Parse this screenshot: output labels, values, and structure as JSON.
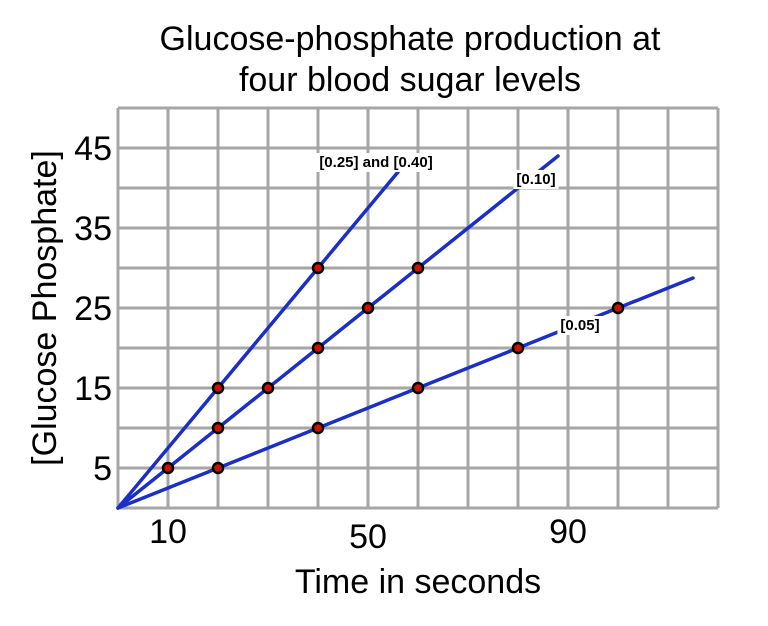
{
  "chart_data": {
    "type": "line",
    "title_lines": [
      "Glucose-phosphate production at",
      "four blood sugar levels"
    ],
    "xlabel": "Time in seconds",
    "ylabel": "[Glucose Phosphate]",
    "xlim": [
      0,
      120
    ],
    "ylim": [
      0,
      50
    ],
    "x_grid_step": 10,
    "y_grid_step": 5,
    "x_ticks": [
      {
        "value": 10,
        "label": "10"
      },
      {
        "value": 50,
        "label": "50"
      },
      {
        "value": 90,
        "label": "90"
      }
    ],
    "y_ticks": [
      {
        "value": 5,
        "label": "5"
      },
      {
        "value": 15,
        "label": "15"
      },
      {
        "value": 25,
        "label": "25"
      },
      {
        "value": 35,
        "label": "35"
      },
      {
        "value": 45,
        "label": "45"
      }
    ],
    "grid": true,
    "grid_color": "#a6a6a6",
    "line_color": "#1a2ec8",
    "marker_fill": "#cc1100",
    "marker_edge": "#000000",
    "series": [
      {
        "name": "[0.25] and [0.40]",
        "points": [
          [
            0,
            0
          ],
          [
            10,
            5
          ],
          [
            20,
            15
          ],
          [
            40,
            30
          ]
        ],
        "line_end": [
          56,
          42
        ]
      },
      {
        "name": "[0.10]",
        "points": [
          [
            0,
            0
          ],
          [
            20,
            10
          ],
          [
            30,
            15
          ],
          [
            40,
            20
          ],
          [
            50,
            25
          ],
          [
            60,
            30
          ]
        ],
        "line_end": [
          88,
          44
        ]
      },
      {
        "name": "[0.05]",
        "points": [
          [
            0,
            0
          ],
          [
            20,
            5
          ],
          [
            40,
            10
          ],
          [
            60,
            15
          ],
          [
            80,
            20
          ],
          [
            100,
            25
          ]
        ],
        "line_end": [
          115,
          28.75
        ]
      }
    ]
  }
}
